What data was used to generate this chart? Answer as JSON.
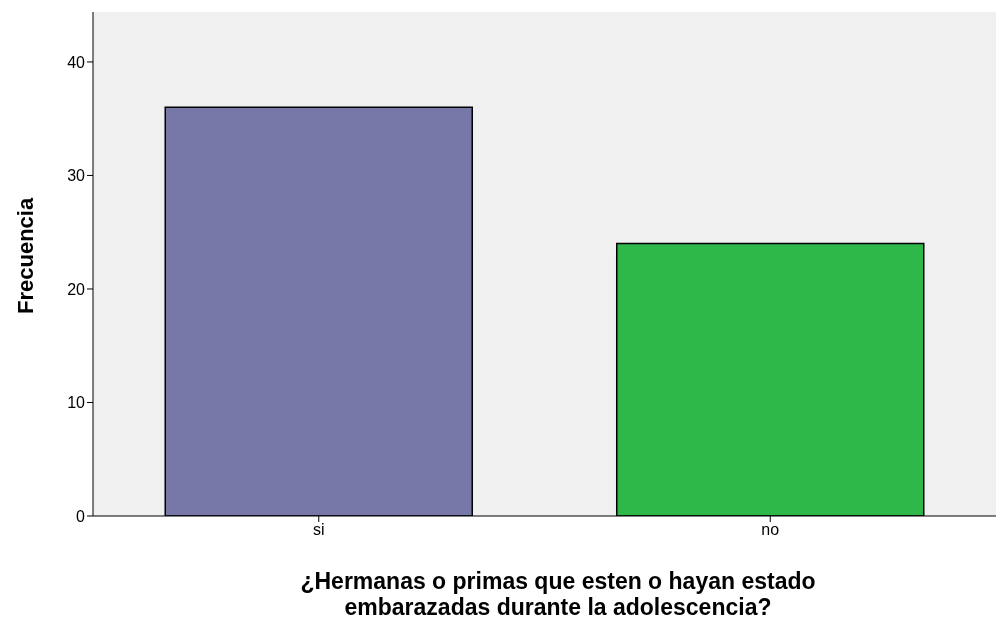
{
  "chart_data": {
    "type": "bar",
    "categories": [
      "si",
      "no"
    ],
    "values": [
      36,
      24
    ],
    "colors": [
      "#7878a8",
      "#2eb84a"
    ],
    "ylim": [
      0,
      44.4
    ],
    "yticks": [
      0,
      10,
      20,
      30,
      40
    ],
    "ylabel": "Frecuencia",
    "xlabel": "¿Hermanas o primas que esten o hayan estado embarazadas durante la adolescencia?",
    "grid": false
  }
}
